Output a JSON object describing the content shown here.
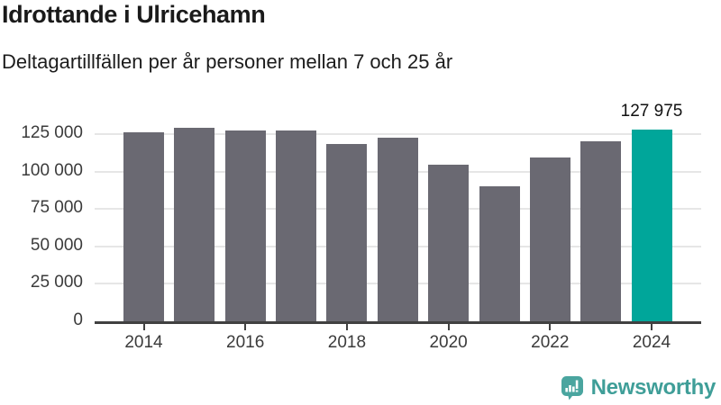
{
  "header": {
    "title": "Idrottande i Ulricehamn",
    "subtitle": "Deltagartillfällen per år personer mellan 7 och 25 år"
  },
  "chart_data": {
    "type": "bar",
    "title": "Idrottande i Ulricehamn",
    "subtitle": "Deltagartillfällen per år personer mellan 7 och 25 år",
    "categories": [
      "2014",
      "2015",
      "2016",
      "2017",
      "2018",
      "2019",
      "2020",
      "2021",
      "2022",
      "2023",
      "2024"
    ],
    "values": [
      126000,
      129000,
      127400,
      127300,
      118300,
      122500,
      104300,
      90000,
      109600,
      120400,
      127975
    ],
    "highlight_index": 10,
    "highlight_label": "127 975",
    "bar_color": "#6a6972",
    "highlight_color": "#00a69a",
    "yticks": [
      0,
      25000,
      50000,
      75000,
      100000,
      125000
    ],
    "ytick_labels": [
      "0",
      "25 000",
      "50 000",
      "75 000",
      "100 000",
      "125 000"
    ],
    "xtick_labels": [
      "2014",
      "2016",
      "2018",
      "2020",
      "2022",
      "2024"
    ],
    "ylim": [
      0,
      131000
    ],
    "grid": true,
    "legend": false,
    "axis_color": "#414141",
    "grid_color": "#e6e6e6",
    "tick_label_color": "#3b3b3b"
  },
  "footer": {
    "brand": "Newsworthy",
    "brand_color": "#3f9e98",
    "icon": "newsworthy-bar-chart-bubble-icon",
    "icon_color": "#4aa59f"
  }
}
